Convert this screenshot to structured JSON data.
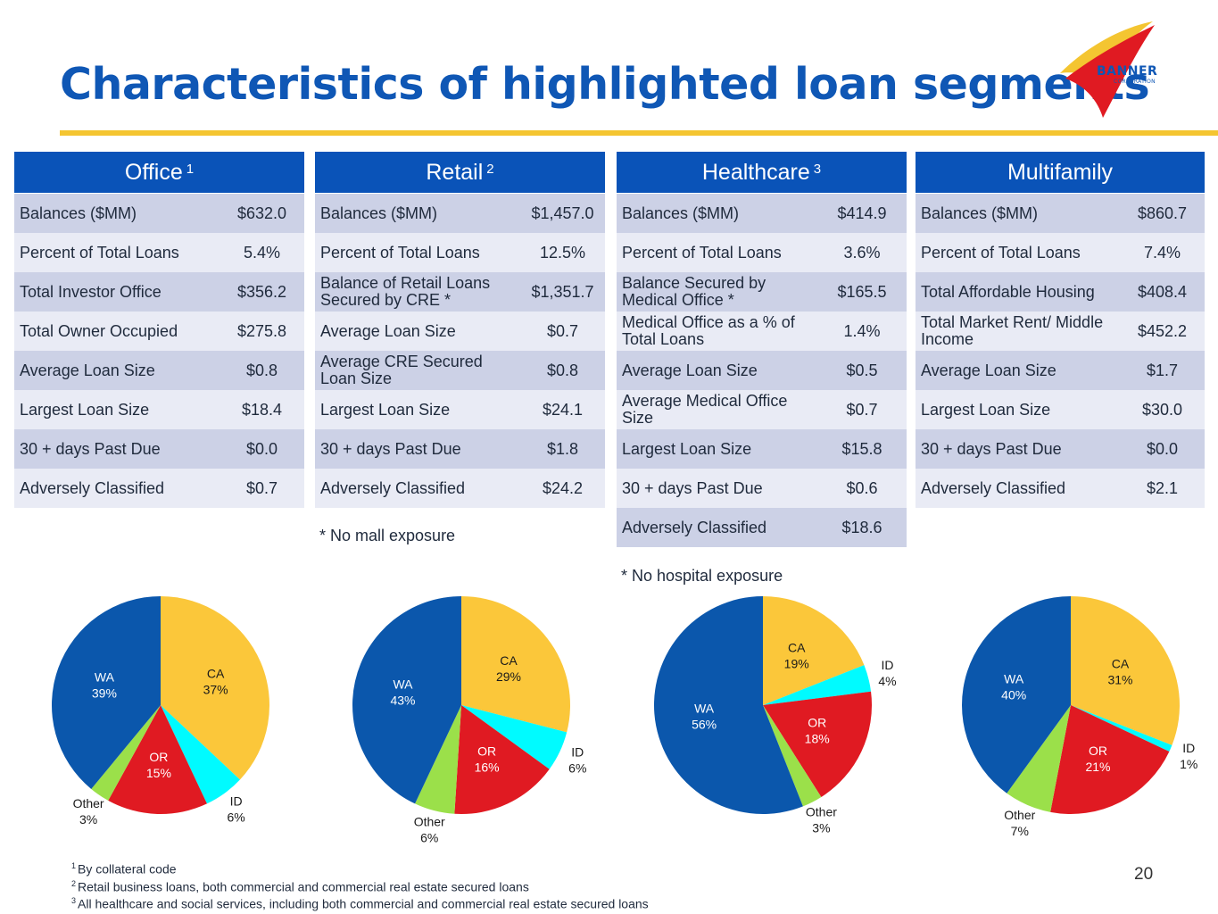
{
  "title": "Characteristics of highlighted loan segments",
  "logo": {
    "name": "BANNER",
    "sub": "CORPORATION"
  },
  "colors": {
    "header": "#0a53b8",
    "title": "#0f57b5",
    "rule": "#f4c531",
    "CA": "#fbc73a",
    "ID": "#00fbff",
    "OR": "#e01a22",
    "Other": "#9be04a",
    "WA": "#0b57ac"
  },
  "panels": [
    {
      "title": "Office",
      "sup": "1",
      "rows": [
        {
          "label": "Balances ($MM)",
          "value": "$632.0"
        },
        {
          "label": "Percent of Total Loans",
          "value": "5.4%"
        },
        {
          "label": "Total Investor Office",
          "value": "$356.2"
        },
        {
          "label": "Total Owner Occupied",
          "value": "$275.8"
        },
        {
          "label": "Average Loan Size",
          "value": "$0.8"
        },
        {
          "label": "Largest Loan Size",
          "value": "$18.4"
        },
        {
          "label": "30 + days Past Due",
          "value": "$0.0"
        },
        {
          "label": "Adversely Classified",
          "value": "$0.7"
        }
      ],
      "note": ""
    },
    {
      "title": "Retail",
      "sup": "2",
      "rows": [
        {
          "label": "Balances ($MM)",
          "value": "$1,457.0"
        },
        {
          "label": "Percent of Total Loans",
          "value": "12.5%"
        },
        {
          "label": "Balance of Retail Loans Secured by CRE *",
          "value": "$1,351.7"
        },
        {
          "label": "Average Loan Size",
          "value": "$0.7"
        },
        {
          "label": "Average CRE Secured Loan Size",
          "value": "$0.8"
        },
        {
          "label": "Largest Loan Size",
          "value": "$24.1"
        },
        {
          "label": "30 + days Past Due",
          "value": "$1.8"
        },
        {
          "label": "Adversely Classified",
          "value": "$24.2"
        }
      ],
      "note": "* No mall exposure"
    },
    {
      "title": "Healthcare",
      "sup": "3",
      "rows": [
        {
          "label": "Balances ($MM)",
          "value": "$414.9"
        },
        {
          "label": "Percent of Total Loans",
          "value": "3.6%"
        },
        {
          "label": "Balance Secured by Medical Office *",
          "value": "$165.5"
        },
        {
          "label": "Medical Office as a % of Total Loans",
          "value": "1.4%"
        },
        {
          "label": "Average Loan Size",
          "value": "$0.5"
        },
        {
          "label": "Average Medical Office Size",
          "value": "$0.7"
        },
        {
          "label": "Largest Loan Size",
          "value": "$15.8"
        },
        {
          "label": "30 + days Past Due",
          "value": "$0.6"
        },
        {
          "label": "Adversely Classified",
          "value": "$18.6"
        }
      ],
      "note": "* No hospital exposure"
    },
    {
      "title": "Multifamily",
      "sup": "",
      "rows": [
        {
          "label": "Balances ($MM)",
          "value": "$860.7"
        },
        {
          "label": "Percent of Total Loans",
          "value": "7.4%"
        },
        {
          "label": "Total Affordable Housing",
          "value": "$408.4"
        },
        {
          "label": "Total Market Rent/ Middle Income",
          "value": "$452.2"
        },
        {
          "label": "Average Loan Size",
          "value": "$1.7"
        },
        {
          "label": "Largest Loan Size",
          "value": "$30.0"
        },
        {
          "label": "30 + days Past Due",
          "value": "$0.0"
        },
        {
          "label": "Adversely Classified",
          "value": "$2.1"
        }
      ],
      "note": ""
    }
  ],
  "chart_data": [
    {
      "type": "pie",
      "categories": [
        "CA",
        "ID",
        "OR",
        "Other",
        "WA"
      ],
      "values": [
        37,
        6,
        15,
        3,
        39
      ],
      "labels": [
        "37%",
        "6%",
        "15%",
        "3%",
        "39%"
      ]
    },
    {
      "type": "pie",
      "categories": [
        "CA",
        "ID",
        "OR",
        "Other",
        "WA"
      ],
      "values": [
        29,
        6,
        16,
        6,
        43
      ],
      "labels": [
        "29%",
        "6%",
        "16%",
        "6%",
        "43%"
      ]
    },
    {
      "type": "pie",
      "categories": [
        "CA",
        "ID",
        "OR",
        "Other",
        "WA"
      ],
      "values": [
        19,
        4,
        18,
        3,
        56
      ],
      "labels": [
        "19%",
        "4%",
        "18%",
        "3%",
        "56%"
      ]
    },
    {
      "type": "pie",
      "categories": [
        "CA",
        "ID",
        "OR",
        "Other",
        "WA"
      ],
      "values": [
        31,
        1,
        21,
        7,
        40
      ],
      "labels": [
        "31%",
        "1%",
        "21%",
        "7%",
        "40%"
      ]
    }
  ],
  "footnotes": [
    {
      "num": "1",
      "text": "By collateral code"
    },
    {
      "num": "2",
      "text": "Retail business loans, both commercial and commercial real estate secured loans"
    },
    {
      "num": "3",
      "text": "All healthcare and social services, including both commercial and commercial real estate secured loans"
    }
  ],
  "page_number": "20"
}
